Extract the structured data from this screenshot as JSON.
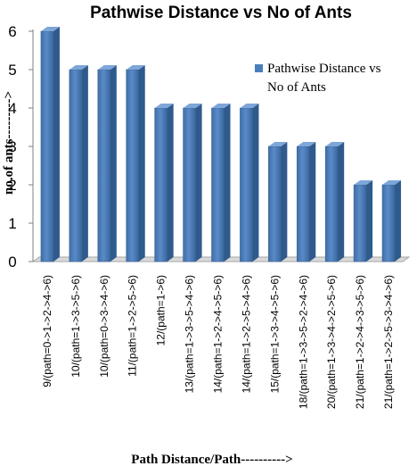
{
  "chart_data": {
    "type": "bar",
    "title": "Pathwise Distance vs No of Ants",
    "xlabel": "Path Distance/Path---------->",
    "ylabel": "no.of ants--------->",
    "ylim": [
      0,
      6
    ],
    "yticks": [
      "0",
      "1",
      "2",
      "3",
      "4",
      "5",
      "6"
    ],
    "grid": false,
    "legend_position": "right",
    "categories": [
      "9/(path=0->1->2->4->6)",
      "10/(path=1->3->5->6)",
      "10/(path=0->3->4->6)",
      "11/(path=1->2->5->6)",
      "12/(path=1->6)",
      "13/(path=1->3->5->4->6)",
      "14/(path=1->2->4->5->6)",
      "14/(path=1->2->5->4->6)",
      "15/(path=1->3->4->5->6)",
      "18/(path=1->3->5->2->4->6)",
      "20/(path=1->3->4->2->5->6)",
      "21/(path=1->2->4->3->5->6)",
      "21/(path=1->2->5->3->4->6)"
    ],
    "series": [
      {
        "name": "Pathwise Distance vs No of Ants",
        "legend_lines": [
          "Pathwise Distance vs",
          "No of Ants"
        ],
        "color": "#4a7ebb",
        "values": [
          6,
          5,
          5,
          5,
          4,
          4,
          4,
          4,
          3,
          3,
          3,
          2,
          2
        ]
      }
    ]
  }
}
